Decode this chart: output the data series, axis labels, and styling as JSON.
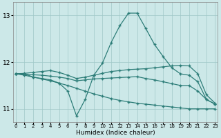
{
  "xlabel": "Humidex (Indice chaleur)",
  "x": [
    0,
    1,
    2,
    3,
    4,
    5,
    6,
    7,
    8,
    9,
    10,
    11,
    12,
    13,
    14,
    15,
    16,
    17,
    18,
    19,
    20,
    21,
    22,
    23
  ],
  "line1": [
    11.75,
    11.75,
    11.68,
    11.65,
    11.62,
    11.55,
    11.38,
    10.85,
    11.2,
    11.72,
    11.98,
    12.42,
    12.78,
    13.05,
    13.05,
    12.72,
    12.38,
    12.12,
    11.88,
    11.75,
    11.72,
    11.58,
    11.2,
    11.1
  ],
  "line2": [
    11.75,
    11.76,
    11.78,
    11.8,
    11.82,
    11.78,
    11.72,
    11.65,
    11.68,
    11.72,
    11.76,
    11.8,
    11.82,
    11.84,
    11.85,
    11.86,
    11.88,
    11.9,
    11.92,
    11.93,
    11.92,
    11.75,
    11.3,
    11.12
  ],
  "line3": [
    11.75,
    11.74,
    11.73,
    11.72,
    11.7,
    11.68,
    11.65,
    11.6,
    11.62,
    11.64,
    11.65,
    11.66,
    11.67,
    11.68,
    11.69,
    11.65,
    11.62,
    11.58,
    11.54,
    11.5,
    11.5,
    11.38,
    11.2,
    11.1
  ],
  "line4": [
    11.75,
    11.72,
    11.68,
    11.64,
    11.6,
    11.55,
    11.5,
    11.44,
    11.38,
    11.32,
    11.27,
    11.22,
    11.18,
    11.15,
    11.12,
    11.1,
    11.08,
    11.06,
    11.04,
    11.02,
    11.0,
    11.0,
    11.0,
    11.0
  ],
  "color": "#2d7d78",
  "bg_color": "#cce8e8",
  "grid_color": "#a0c8c8",
  "ylim": [
    10.72,
    13.28
  ],
  "yticks": [
    11,
    12,
    13
  ],
  "xlim": [
    -0.3,
    23.3
  ]
}
